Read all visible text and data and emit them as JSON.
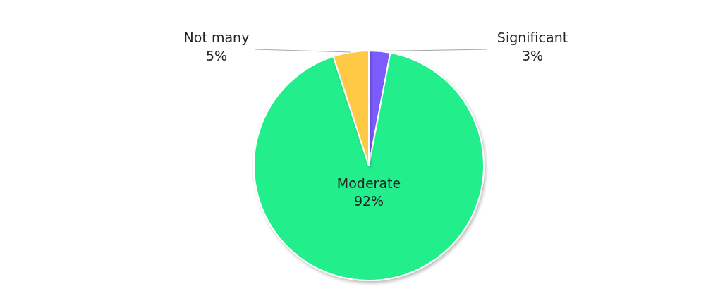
{
  "chart_data": {
    "type": "pie",
    "categories": [
      "Significant",
      "Moderate",
      "Not many"
    ],
    "values": [
      3,
      92,
      5
    ],
    "value_labels": [
      "3%",
      "92%",
      "5%"
    ],
    "colors": [
      "#7b5cff",
      "#23ee8c",
      "#ffc845"
    ]
  }
}
